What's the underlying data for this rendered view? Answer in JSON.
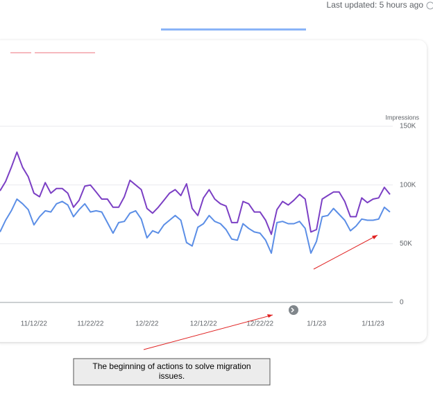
{
  "last_updated": "Last updated: 5 hours ago",
  "annotation": "The beginning of actions to solve migration issues.",
  "chart_data": {
    "type": "line",
    "y_axis_label": "Impressions",
    "x": [
      "11/6/22",
      "11/7/22",
      "11/8/22",
      "11/9/22",
      "11/10/22",
      "11/11/22",
      "11/12/22",
      "11/13/22",
      "11/14/22",
      "11/15/22",
      "11/16/22",
      "11/17/22",
      "11/18/22",
      "11/19/22",
      "11/20/22",
      "11/21/22",
      "11/22/22",
      "11/23/22",
      "11/24/22",
      "11/25/22",
      "11/26/22",
      "11/27/22",
      "11/28/22",
      "11/29/22",
      "11/30/22",
      "12/1/22",
      "12/2/22",
      "12/3/22",
      "12/4/22",
      "12/5/22",
      "12/6/22",
      "12/7/22",
      "12/8/22",
      "12/9/22",
      "12/10/22",
      "12/11/22",
      "12/12/22",
      "12/13/22",
      "12/14/22",
      "12/15/22",
      "12/16/22",
      "12/17/22",
      "12/18/22",
      "12/19/22",
      "12/20/22",
      "12/21/22",
      "12/22/22",
      "12/23/22",
      "12/24/22",
      "12/25/22",
      "12/26/22",
      "12/27/22",
      "12/28/22",
      "12/29/22",
      "12/30/22",
      "12/31/22",
      "1/1/23",
      "1/2/23",
      "1/3/23",
      "1/4/23",
      "1/5/23",
      "1/6/23",
      "1/7/23",
      "1/8/23",
      "1/9/23",
      "1/10/23",
      "1/11/23",
      "1/12/23",
      "1/13/23",
      "1/14/23"
    ],
    "series": [
      {
        "color": "#7b3fc4",
        "values": [
          95000,
          103000,
          115000,
          128000,
          115000,
          107000,
          93000,
          90000,
          102000,
          93000,
          97000,
          97000,
          93000,
          81000,
          87000,
          99000,
          100000,
          94000,
          88000,
          88000,
          81000,
          81000,
          90000,
          104000,
          100000,
          96000,
          80000,
          76000,
          81000,
          87000,
          93000,
          96000,
          91000,
          101000,
          80000,
          74000,
          89000,
          96000,
          88000,
          84000,
          82000,
          68000,
          68000,
          86000,
          84000,
          77000,
          77000,
          70000,
          58000,
          79000,
          86000,
          83000,
          87000,
          92000,
          88000,
          60000,
          62000,
          88000,
          91000,
          94000,
          94000,
          86000,
          73000,
          73000,
          89000,
          85000,
          88000,
          89000,
          98000,
          92000
        ]
      },
      {
        "color": "#5b8ee6",
        "values": [
          60000,
          70000,
          78000,
          88000,
          84000,
          79000,
          66000,
          73000,
          78000,
          77000,
          84000,
          86000,
          83000,
          73000,
          79000,
          84000,
          77000,
          78000,
          77000,
          68000,
          59000,
          68000,
          69000,
          76000,
          78000,
          71000,
          55000,
          61000,
          59000,
          66000,
          70000,
          74000,
          70000,
          51000,
          48000,
          64000,
          67000,
          74000,
          69000,
          67000,
          62000,
          54000,
          53000,
          67000,
          63000,
          60000,
          59000,
          53000,
          42000,
          68000,
          69000,
          67000,
          67000,
          69000,
          63000,
          42000,
          52000,
          73000,
          74000,
          80000,
          75000,
          70000,
          61000,
          65000,
          71000,
          70000,
          70000,
          71000,
          81000,
          77000
        ]
      }
    ],
    "xlim": [
      "11/6/22",
      "1/14/23"
    ],
    "xticks": [
      "11/12/22",
      "11/22/22",
      "12/2/22",
      "12/12/22",
      "12/22/22",
      "1/1/23",
      "1/11/23"
    ],
    "ylim": [
      0,
      150000
    ],
    "yticks": [
      0,
      {
        "value": 50000,
        "label": "50K"
      },
      {
        "value": 100000,
        "label": "100K"
      },
      {
        "value": 150000,
        "label": "150K"
      }
    ],
    "grid": true
  }
}
